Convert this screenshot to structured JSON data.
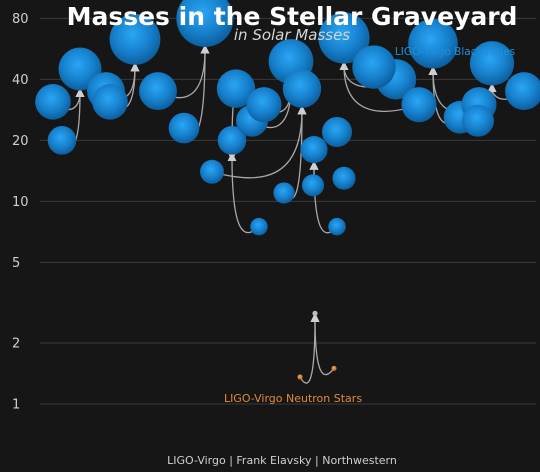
{
  "chart_data": {
    "type": "scatter",
    "title": "Masses in the Stellar Graveyard",
    "subtitle": "in Solar Masses",
    "credit": "LIGO-Virgo | Frank Elavsky | Northwestern",
    "y_scale": "log",
    "ylim": [
      0.8,
      95
    ],
    "y_ticks": [
      1,
      2,
      5,
      10,
      20,
      40,
      80
    ],
    "grid": true,
    "colors": {
      "background": "#161616",
      "black_hole": "#1e8fdc",
      "neutron_star": "#e08a3c",
      "remnant_ns": "#bdbdbd",
      "arrow": "#a9a9a9",
      "grid": "#3a3a3a"
    },
    "series": [
      {
        "name": "LIGO-Virgo Black Holes",
        "mergers": [
          {
            "m1": 31,
            "m2": 20,
            "final": 45
          },
          {
            "m1": 35,
            "m2": 31,
            "final": 63
          },
          {
            "m1": 35,
            "m2": 23,
            "final": 80
          },
          {
            "m1": 36,
            "m2": 7.5,
            "final": 20
          },
          {
            "m1": 25,
            "m2": 30,
            "final": 49
          },
          {
            "m1": 14,
            "m2": 11,
            "final": 36
          },
          {
            "m1": 12,
            "m2": 7.5,
            "final": 18
          },
          {
            "m1": 40,
            "m2": 30,
            "final": 64
          },
          {
            "m1": 26,
            "m2": 30,
            "final": 60
          },
          {
            "m1": 35,
            "m2": 25,
            "final": 48
          }
        ],
        "standalone": [
          {
            "final": 22
          },
          {
            "final": 13
          },
          {
            "final": 46
          }
        ]
      },
      {
        "name": "LIGO-Virgo Neutron Stars",
        "mergers": [
          {
            "m1": 1.36,
            "m2": 1.5,
            "final": 2.8
          }
        ]
      }
    ]
  }
}
